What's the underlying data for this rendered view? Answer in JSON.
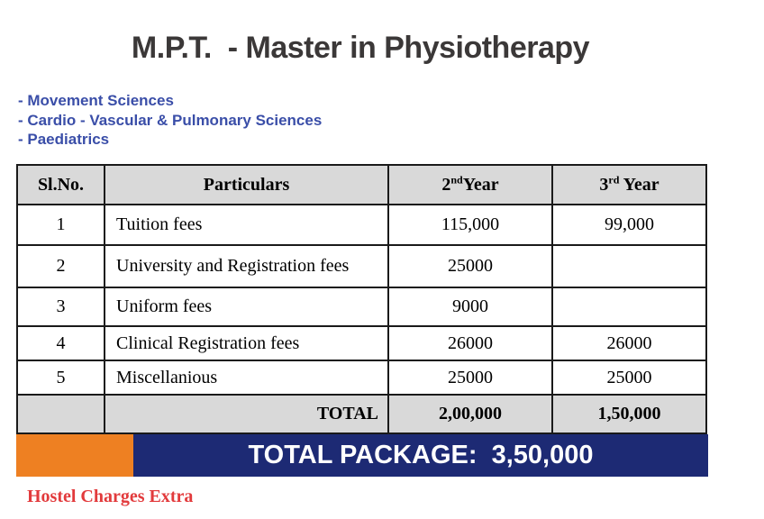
{
  "page": {
    "title": "M.P.T.  - Master in Physiotherapy",
    "specializations": [
      "- Movement Sciences",
      "- Cardio - Vascular & Pulmonary Sciences",
      "- Paediatrics"
    ]
  },
  "table": {
    "headers": {
      "sl": "Sl.No.",
      "particulars": "Particulars",
      "year2": {
        "base": "2",
        "sup": "nd",
        "rest": "Year"
      },
      "year3": {
        "base": "3",
        "sup": "rd",
        "rest": " Year"
      }
    },
    "rows": [
      {
        "sl": "1",
        "particulars": "Tuition fees",
        "year2": "115,000",
        "year3": "99,000"
      },
      {
        "sl": "2",
        "particulars": "University and Registration fees",
        "year2": "25000",
        "year3": ""
      },
      {
        "sl": "3",
        "particulars": "Uniform fees",
        "year2": "9000",
        "year3": ""
      },
      {
        "sl": "4",
        "particulars": "Clinical Registration fees",
        "year2": "26000",
        "year3": "26000"
      },
      {
        "sl": "5",
        "particulars": "Miscellanious",
        "year2": "25000",
        "year3": "25000"
      }
    ],
    "total_row": {
      "sl": "",
      "label": "TOTAL",
      "year2": "2,00,000",
      "year3": "1,50,000"
    }
  },
  "banner": {
    "text": "TOTAL PACKAGE:  3,50,000"
  },
  "footnote": "Hostel Charges Extra",
  "colors": {
    "navy": "#1d2a74",
    "orange": "#ee8022",
    "list_blue": "#3a4ea8",
    "note_red": "#e23a3c",
    "header_gray": "#d9d9d9",
    "title_color": "#3b3838",
    "border_color": "#1a1a1a"
  }
}
